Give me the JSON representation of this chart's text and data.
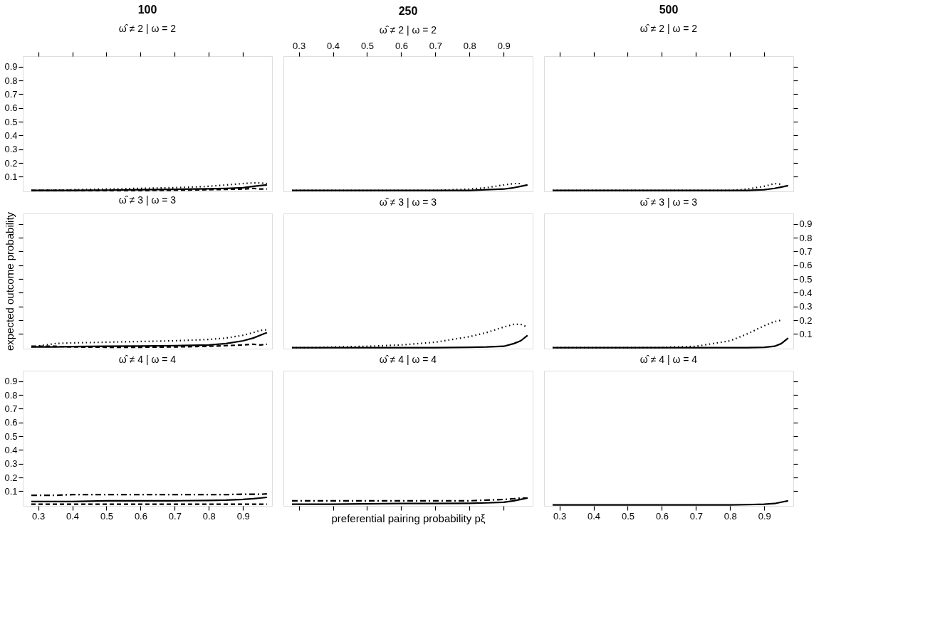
{
  "chart_data": [
    {
      "type": "line",
      "title": "100",
      "subtitle": "ω̂ ≠ 2  |  ω = 2",
      "x": [
        0.28,
        0.35,
        0.4,
        0.5,
        0.6,
        0.7,
        0.8,
        0.85,
        0.9,
        0.93,
        0.95,
        0.97
      ],
      "xlim": [
        0.255,
        0.985
      ],
      "xticks": [
        0.3,
        0.4,
        0.5,
        0.6,
        0.7,
        0.8,
        0.9
      ],
      "ylim": [
        -0.007,
        0.977
      ],
      "yticks": [
        0.1,
        0.2,
        0.3,
        0.4,
        0.5,
        0.6,
        0.7,
        0.8,
        0.9
      ],
      "tick_labels": "y",
      "grid": false,
      "series": [
        {
          "color": "#000000",
          "line_style": "dotted",
          "values": [
            0,
            0.002,
            0.005,
            0.01,
            0.015,
            0.02,
            0.03,
            0.04,
            0.05,
            0.055,
            0.055,
            0.05
          ]
        },
        {
          "color": "#000000",
          "line_style": "solid",
          "values": [
            0,
            0,
            0,
            0.002,
            0.005,
            0.008,
            0.012,
            0.015,
            0.02,
            0.03,
            0.035,
            0.04
          ]
        },
        {
          "color": "#000000",
          "line_style": "dashed",
          "values": [
            0,
            0,
            0,
            0,
            0,
            0.002,
            0.005,
            0.008,
            0.01,
            0.015,
            0.01,
            0.01
          ]
        }
      ]
    },
    {
      "type": "line",
      "title": "250",
      "subtitle": "ω̂ ≠ 2  |  ω = 2",
      "x": [
        0.28,
        0.35,
        0.4,
        0.5,
        0.6,
        0.7,
        0.8,
        0.85,
        0.9,
        0.93,
        0.95,
        0.97
      ],
      "xlim": [
        0.255,
        0.985
      ],
      "xticks": [
        0.3,
        0.4,
        0.5,
        0.6,
        0.7,
        0.8,
        0.9
      ],
      "ylim": [
        -0.007,
        0.977
      ],
      "tick_labels": "x",
      "grid": false,
      "series": [
        {
          "color": "#000000",
          "line_style": "dotted",
          "values": [
            0,
            0,
            0,
            0,
            0,
            0,
            0.01,
            0.02,
            0.04,
            0.05,
            0.05,
            null
          ]
        },
        {
          "color": "#000000",
          "line_style": "solid",
          "values": [
            0,
            0,
            0,
            0,
            0,
            0,
            0,
            0.005,
            0.01,
            0.02,
            0.03,
            0.04
          ]
        }
      ]
    },
    {
      "type": "line",
      "title": "500",
      "subtitle": "ω̂ ≠ 2  |  ω = 2",
      "x": [
        0.28,
        0.35,
        0.4,
        0.5,
        0.6,
        0.7,
        0.8,
        0.85,
        0.9,
        0.93,
        0.95,
        0.97
      ],
      "xlim": [
        0.255,
        0.985
      ],
      "xticks": [
        0.3,
        0.4,
        0.5,
        0.6,
        0.7,
        0.8,
        0.9
      ],
      "ylim": [
        -0.007,
        0.977
      ],
      "yticks": [
        0.1,
        0.2,
        0.3,
        0.4,
        0.5,
        0.6,
        0.7,
        0.8,
        0.9
      ],
      "tick_labels": false,
      "grid": false,
      "series": [
        {
          "color": "#000000",
          "line_style": "dotted",
          "values": [
            0,
            0,
            0,
            0,
            0,
            0,
            0,
            0.01,
            0.03,
            0.05,
            0.045,
            null
          ]
        },
        {
          "color": "#000000",
          "line_style": "solid",
          "values": [
            0,
            0,
            0,
            0,
            0,
            0,
            0,
            0,
            0.005,
            0.015,
            0.025,
            0.035
          ]
        }
      ]
    },
    {
      "type": "line",
      "subtitle": "ω̂ ≠ 3  |  ω = 3",
      "ylabel": "expected outcome probability",
      "x": [
        0.28,
        0.35,
        0.4,
        0.5,
        0.6,
        0.7,
        0.8,
        0.85,
        0.9,
        0.93,
        0.95,
        0.97
      ],
      "xlim": [
        0.255,
        0.985
      ],
      "ylim": [
        -0.007,
        0.977
      ],
      "yticks": [
        0.1,
        0.2,
        0.3,
        0.4,
        0.5,
        0.6,
        0.7,
        0.8,
        0.9
      ],
      "tick_labels": false,
      "grid": false,
      "series": [
        {
          "color": "#000000",
          "line_style": "dotted",
          "values": [
            0.005,
            0.03,
            0.035,
            0.04,
            0.045,
            0.05,
            0.06,
            0.07,
            0.09,
            0.11,
            0.125,
            0.13
          ]
        },
        {
          "color": "#000000",
          "line_style": "solid",
          "values": [
            0.005,
            0.005,
            0.008,
            0.01,
            0.012,
            0.015,
            0.02,
            0.03,
            0.05,
            0.07,
            0.09,
            0.11
          ]
        },
        {
          "color": "#000000",
          "line_style": "dashed",
          "values": [
            0.01,
            0.01,
            0.005,
            0.003,
            0.003,
            0.005,
            0.01,
            0.015,
            0.02,
            0.025,
            0.02,
            0.025
          ]
        }
      ]
    },
    {
      "type": "line",
      "subtitle": "ω̂ ≠ 3  |  ω = 3",
      "x": [
        0.28,
        0.35,
        0.4,
        0.5,
        0.6,
        0.7,
        0.8,
        0.85,
        0.9,
        0.93,
        0.95,
        0.97
      ],
      "xlim": [
        0.255,
        0.985
      ],
      "ylim": [
        -0.007,
        0.977
      ],
      "series": [
        {
          "color": "#000000",
          "line_style": "dotted",
          "values": [
            0,
            0,
            0.005,
            0.01,
            0.02,
            0.04,
            0.08,
            0.11,
            0.15,
            0.17,
            0.17,
            0.15
          ]
        },
        {
          "color": "#000000",
          "line_style": "solid",
          "values": [
            0,
            0,
            0,
            0,
            0,
            0,
            0.003,
            0.005,
            0.01,
            0.03,
            0.05,
            0.09
          ]
        }
      ]
    },
    {
      "type": "line",
      "subtitle": "ω̂ ≠ 3  |  ω = 3",
      "x": [
        0.28,
        0.35,
        0.4,
        0.5,
        0.6,
        0.7,
        0.8,
        0.85,
        0.9,
        0.93,
        0.95,
        0.97
      ],
      "xlim": [
        0.255,
        0.985
      ],
      "ylim": [
        -0.007,
        0.977
      ],
      "yticks": [
        0.1,
        0.2,
        0.3,
        0.4,
        0.5,
        0.6,
        0.7,
        0.8,
        0.9
      ],
      "tick_labels": "y",
      "grid": false,
      "series": [
        {
          "color": "#000000",
          "line_style": "dotted",
          "values": [
            0,
            0,
            0,
            0,
            0.002,
            0.01,
            0.05,
            0.1,
            0.16,
            0.19,
            0.2,
            null
          ]
        },
        {
          "color": "#000000",
          "line_style": "solid",
          "values": [
            0,
            0,
            0,
            0,
            0,
            0,
            0,
            0,
            0.003,
            0.01,
            0.03,
            0.07
          ]
        }
      ]
    },
    {
      "type": "line",
      "subtitle": "ω̂ ≠ 4  |  ω = 4",
      "x": [
        0.28,
        0.35,
        0.4,
        0.5,
        0.6,
        0.7,
        0.8,
        0.85,
        0.9,
        0.93,
        0.95,
        0.97
      ],
      "xlim": [
        0.255,
        0.985
      ],
      "xticks": [
        0.3,
        0.4,
        0.5,
        0.6,
        0.7,
        0.8,
        0.9
      ],
      "ylim": [
        -0.007,
        0.977
      ],
      "yticks": [
        0.1,
        0.2,
        0.3,
        0.4,
        0.5,
        0.6,
        0.7,
        0.8,
        0.9
      ],
      "grid": false,
      "series": [
        {
          "color": "#000000",
          "line_style": "dashdot",
          "values": [
            0.07,
            0.07,
            0.075,
            0.075,
            0.075,
            0.075,
            0.075,
            0.075,
            0.078,
            0.078,
            0.078,
            0.08
          ]
        },
        {
          "color": "#000000",
          "line_style": "solid",
          "values": [
            0.025,
            0.025,
            0.025,
            0.03,
            0.03,
            0.03,
            0.033,
            0.035,
            0.04,
            0.045,
            0.05,
            0.055
          ]
        },
        {
          "color": "#000000",
          "line_style": "dashed",
          "values": [
            0.005,
            0.005,
            0.005,
            0.005,
            0.005,
            0.005,
            0.005,
            0.005,
            0.005,
            0.005,
            0.005,
            0.005
          ]
        }
      ]
    },
    {
      "type": "line",
      "subtitle": "ω̂ ≠ 4  |  ω = 4",
      "xlabel": "preferential pairing probability pξ",
      "x": [
        0.28,
        0.35,
        0.4,
        0.5,
        0.6,
        0.7,
        0.8,
        0.85,
        0.9,
        0.93,
        0.95,
        0.97
      ],
      "xlim": [
        0.255,
        0.985
      ],
      "xticks": [
        0.3,
        0.4,
        0.5,
        0.6,
        0.7,
        0.8,
        0.9
      ],
      "ylim": [
        -0.007,
        0.977
      ],
      "tick_labels": false,
      "grid": false,
      "series": [
        {
          "color": "#000000",
          "line_style": "dashdot",
          "values": [
            0.03,
            0.03,
            0.03,
            0.03,
            0.03,
            0.03,
            0.03,
            0.035,
            0.04,
            0.045,
            0.05,
            0.05
          ]
        },
        {
          "color": "#000000",
          "line_style": "solid",
          "values": [
            0.005,
            0.005,
            0.005,
            0.008,
            0.01,
            0.01,
            0.012,
            0.015,
            0.02,
            0.03,
            0.04,
            0.05
          ]
        }
      ]
    },
    {
      "type": "line",
      "subtitle": "ω̂ ≠ 4  |  ω = 4",
      "x": [
        0.28,
        0.35,
        0.4,
        0.5,
        0.6,
        0.7,
        0.8,
        0.85,
        0.9,
        0.93,
        0.95,
        0.97
      ],
      "xlim": [
        0.255,
        0.985
      ],
      "xticks": [
        0.3,
        0.4,
        0.5,
        0.6,
        0.7,
        0.8,
        0.9
      ],
      "ylim": [
        -0.007,
        0.977
      ],
      "yticks": [
        0.1,
        0.2,
        0.3,
        0.4,
        0.5,
        0.6,
        0.7,
        0.8,
        0.9
      ],
      "tick_labels": "x",
      "grid": false,
      "series": [
        {
          "color": "#000000",
          "line_style": "solid",
          "values": [
            0,
            0,
            0,
            0,
            0,
            0,
            0,
            0.002,
            0.005,
            0.01,
            0.02,
            0.03
          ]
        }
      ]
    }
  ]
}
